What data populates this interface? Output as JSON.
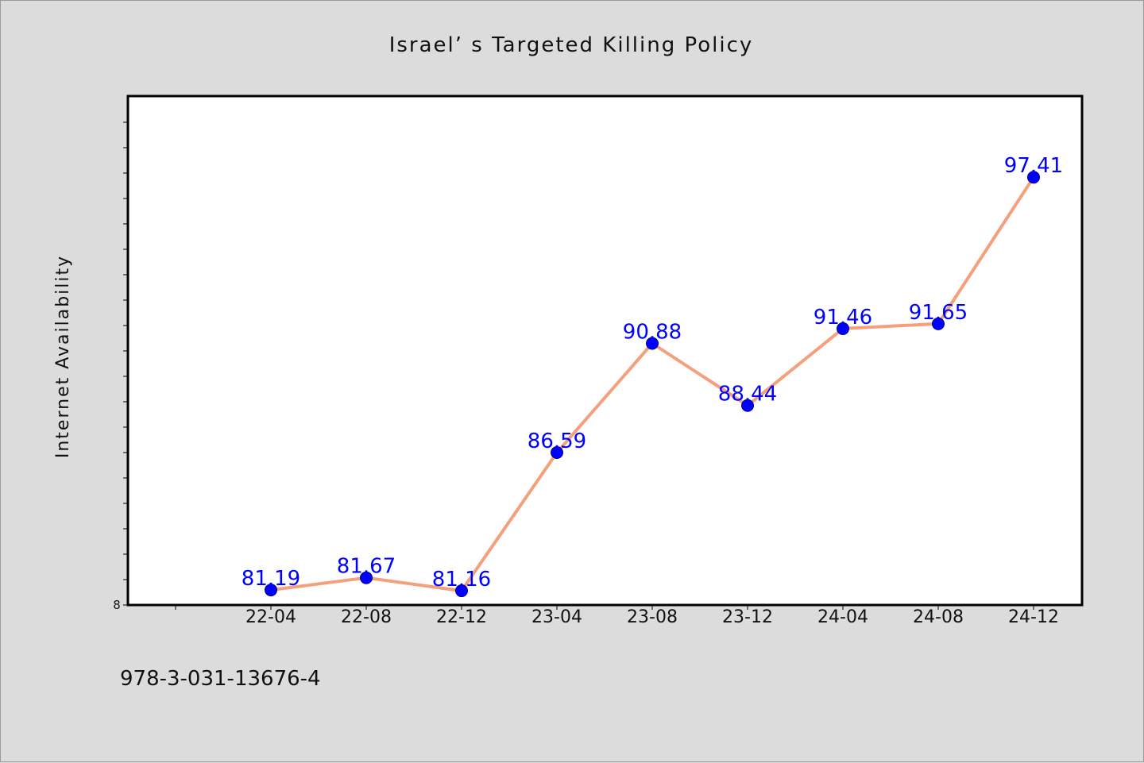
{
  "chart_data": {
    "type": "line",
    "title": "Israel’ s Targeted Killing Policy",
    "xlabel": "",
    "ylabel": "Internet Availability",
    "categories": [
      "22-04",
      "22-08",
      "22-12",
      "23-04",
      "23-08",
      "23-12",
      "24-04",
      "24-08",
      "24-12"
    ],
    "series": [
      {
        "values": [
          81.19,
          81.67,
          81.16,
          86.59,
          90.88,
          88.44,
          91.46,
          91.65,
          97.41
        ],
        "labels": [
          "81.19",
          "81.67",
          "81.16",
          "86.59",
          "90.88",
          "88.44",
          "91.46",
          "91.65",
          "97.41"
        ]
      }
    ],
    "y_tick_label": "8",
    "ylim": [
      80.6,
      100.6
    ],
    "grid": false,
    "line_color": "#f4a07c",
    "marker_color": "#0000ff",
    "label_color": "#0000ff",
    "background_color": "#dcdcdc",
    "plot_background": "#ffffff"
  },
  "footer": {
    "isbn": "978-3-031-13676-4"
  }
}
